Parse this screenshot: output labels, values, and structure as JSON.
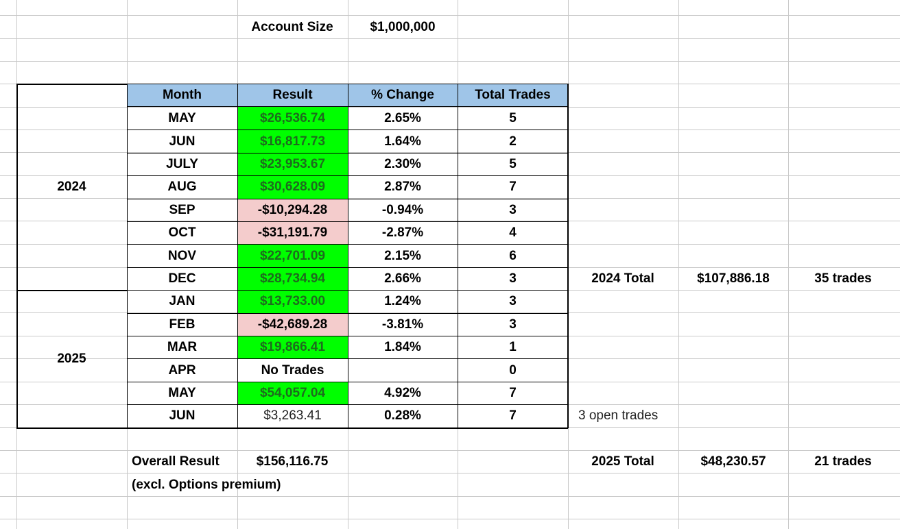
{
  "account": {
    "label": "Account Size",
    "value": "$1,000,000"
  },
  "table": {
    "headers": [
      "Month",
      "Result",
      "% Change",
      "Total Trades"
    ],
    "years": [
      {
        "label": "2024"
      },
      {
        "label": "2025"
      }
    ],
    "rows": [
      {
        "month": "MAY",
        "result": "$26,536.74",
        "change": "2.65%",
        "trades": "5",
        "status": "positive"
      },
      {
        "month": "JUN",
        "result": "$16,817.73",
        "change": "1.64%",
        "trades": "2",
        "status": "positive"
      },
      {
        "month": "JULY",
        "result": "$23,953.67",
        "change": "2.30%",
        "trades": "5",
        "status": "positive"
      },
      {
        "month": "AUG",
        "result": "$30,628.09",
        "change": "2.87%",
        "trades": "7",
        "status": "positive"
      },
      {
        "month": "SEP",
        "result": "-$10,294.28",
        "change": "-0.94%",
        "trades": "3",
        "status": "negative"
      },
      {
        "month": "OCT",
        "result": "-$31,191.79",
        "change": "-2.87%",
        "trades": "4",
        "status": "negative"
      },
      {
        "month": "NOV",
        "result": "$22,701.09",
        "change": "2.15%",
        "trades": "6",
        "status": "positive"
      },
      {
        "month": "DEC",
        "result": "$28,734.94",
        "change": "2.66%",
        "trades": "3",
        "status": "positive"
      },
      {
        "month": "JAN",
        "result": "$13,733.00",
        "change": "1.24%",
        "trades": "3",
        "status": "positive"
      },
      {
        "month": "FEB",
        "result": "-$42,689.28",
        "change": "-3.81%",
        "trades": "3",
        "status": "negative"
      },
      {
        "month": "MAR",
        "result": "$19,866.41",
        "change": "1.84%",
        "trades": "1",
        "status": "positive"
      },
      {
        "month": "APR",
        "result": "No Trades",
        "change": "",
        "trades": "0",
        "status": "none"
      },
      {
        "month": "MAY",
        "result": "$54,057.04",
        "change": "4.92%",
        "trades": "7",
        "status": "positive"
      },
      {
        "month": "JUN",
        "result": "$3,263.41",
        "change": "0.28%",
        "trades": "7",
        "status": "plain"
      }
    ]
  },
  "totals_2024": {
    "label": "2024 Total",
    "amount": "$107,886.18",
    "trades": "35 trades"
  },
  "totals_2025": {
    "label": "2025 Total",
    "amount": "$48,230.57",
    "trades": "21 trades"
  },
  "open_note": "3 open trades",
  "overall": {
    "label": "Overall Result",
    "value": "$156,116.75",
    "note": "(excl. Options premium)"
  },
  "colors": {
    "header": "#9fc5e8",
    "positive": "#00ff00",
    "negative": "#f4cccc",
    "grid": "#c8c8c8"
  }
}
